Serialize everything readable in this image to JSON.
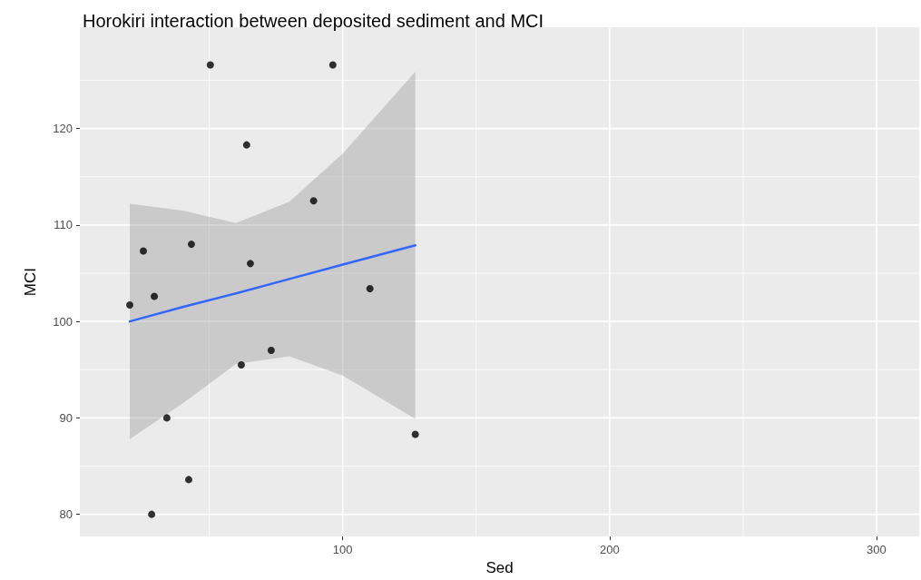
{
  "chart_data": {
    "type": "scatter",
    "title": "Horokiri interaction between deposited sediment and MCI",
    "xlabel": "Sed",
    "ylabel": "MCI",
    "series": [
      {
        "color": "#000000",
        "marker": "circle",
        "x": [
          20.2,
          25.3,
          29.4,
          28.4,
          34.1,
          42.3,
          43.3,
          50.4,
          62,
          64,
          65.4,
          73.2,
          89.1,
          96.3,
          110.2,
          127.2
        ],
        "values": [
          101.7,
          107.3,
          102.6,
          80,
          90,
          83.6,
          108,
          126.6,
          95.5,
          118.3,
          106,
          97,
          112.5,
          126.6,
          103.4,
          88.3
        ]
      },
      {
        "type": "line",
        "marker": "none",
        "color": "#3366ff",
        "x": [
          20.2,
          40,
          60,
          80,
          100,
          127.2
        ],
        "values": [
          100,
          101.5,
          102.9,
          104.4,
          105.9,
          107.9
        ],
        "lower": [
          87.8,
          91.5,
          95.6,
          96.4,
          94.4,
          89.9
        ],
        "upper": [
          112.2,
          111.5,
          110.2,
          112.4,
          117.4,
          125.9
        ]
      }
    ],
    "xlim": [
      1.5,
      316
    ],
    "ylim": [
      77.7,
      130.5
    ],
    "xticks": [
      {
        "value": 50,
        "label": null
      },
      100,
      {
        "value": 150,
        "label": null
      },
      200,
      {
        "value": 250,
        "label": null
      },
      300
    ],
    "yticks": [
      80,
      {
        "value": 85,
        "label": null
      },
      90,
      {
        "value": 95,
        "label": null
      },
      100,
      {
        "value": 105,
        "label": null
      },
      110,
      {
        "value": 115,
        "label": null
      },
      120,
      {
        "value": 125,
        "label": null
      }
    ],
    "grid": true,
    "line_style": "solid"
  }
}
